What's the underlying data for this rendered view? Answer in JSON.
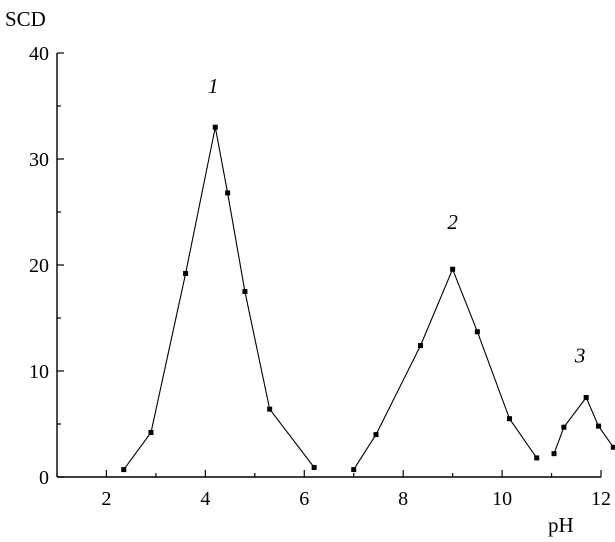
{
  "chart_data": {
    "type": "line",
    "title": "",
    "xlabel": "pH",
    "ylabel": "SCD",
    "xlim": [
      1,
      12
    ],
    "ylim": [
      0,
      40
    ],
    "x_ticks": [
      2,
      4,
      6,
      8,
      10,
      12
    ],
    "y_ticks": [
      0,
      10,
      20,
      30,
      40
    ],
    "grid": false,
    "legend": "none",
    "series": [
      {
        "name": "1",
        "x": [
          2.35,
          2.9,
          3.6,
          4.2,
          4.45,
          4.8,
          5.3,
          6.2
        ],
        "y": [
          0.7,
          4.2,
          19.2,
          33.0,
          26.8,
          17.5,
          6.4,
          0.9
        ]
      },
      {
        "name": "2",
        "x": [
          7.0,
          7.45,
          8.35,
          9.0,
          9.5,
          10.15,
          10.7
        ],
        "y": [
          0.7,
          4.0,
          12.4,
          19.6,
          13.7,
          5.5,
          1.8
        ]
      },
      {
        "name": "3",
        "x": [
          11.05,
          11.25,
          11.7,
          11.95,
          12.25
        ],
        "y": [
          2.2,
          4.7,
          7.5,
          4.8,
          2.8
        ]
      }
    ]
  }
}
